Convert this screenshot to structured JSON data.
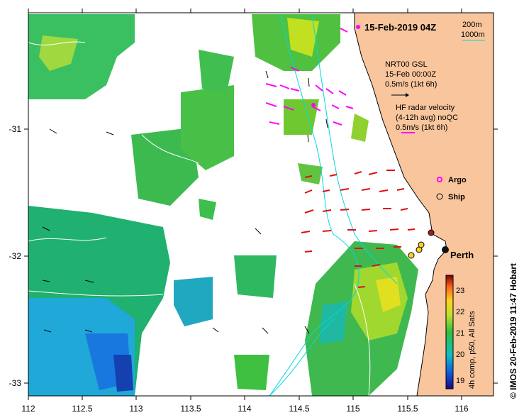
{
  "map": {
    "title": "15-Feb-2019 04Z",
    "scale": {
      "label_1": "200m",
      "label_2": "1000m"
    },
    "nrt": {
      "line1": "NRT00 GSL",
      "line2": "15-Feb 00:00Z",
      "line3": "0.5m/s (1kt 6h)"
    },
    "hf": {
      "line1": "HF radar velocity",
      "line2": "(4-12h avg) noQC",
      "line3": "0.5m/s (1kt 6h)"
    },
    "legend": {
      "argo": "Argo",
      "ship": "Ship"
    },
    "city": "Perth",
    "colorbar": {
      "label": "4h comp, p50, All Sats",
      "ticks": [
        "23",
        "22",
        "21",
        "20",
        "19"
      ]
    },
    "credit": "© IMOS 20-Feb-2019 11:47 Hobart",
    "x_ticks": [
      "112",
      "112.5",
      "113",
      "113.5",
      "114",
      "114.5",
      "115",
      "115.5",
      "116"
    ],
    "y_ticks": [
      "-31",
      "-32",
      "-33"
    ],
    "colors": {
      "land": "#f9c59c",
      "sst_green": "#5cc850",
      "sst_blue": "#1f9fe0",
      "hf_arrow": "#e01010",
      "argo": "#ff00ff",
      "contour": "#00d8e0"
    }
  }
}
